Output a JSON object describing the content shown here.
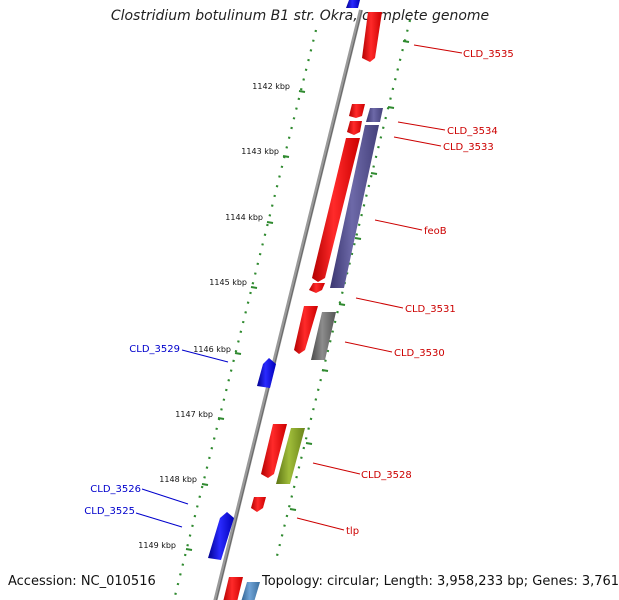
{
  "header": {
    "title": "Clostridium botulinum B1 str. Okra, complete genome"
  },
  "footer": {
    "accession": "Accession: NC_010516",
    "summary": "Topology: circular; Length: 3,958,233 bp; Genes: 3,761"
  },
  "colors": {
    "reverse_gene": "#ff0000",
    "forward_gene": "#0000ee",
    "cds_purple": "#54508e",
    "cds_gray": "#6e6e6e",
    "cds_olive": "#7f9a22",
    "cds_steel": "#4f82b4",
    "scale_tick": "#2f8a2f",
    "label_reverse": "#cc0000",
    "label_forward": "#0000cc"
  },
  "scale_ticks": [
    "1142 kbp",
    "1143 kbp",
    "1144 kbp",
    "1145 kbp",
    "1146 kbp",
    "1147 kbp",
    "1148 kbp",
    "1149 kbp"
  ],
  "gene_labels_right": [
    "CLD_3535",
    "CLD_3534",
    "CLD_3533",
    "feoB",
    "CLD_3531",
    "CLD_3530",
    "CLD_3528",
    "tlp"
  ],
  "gene_labels_left": [
    "CLD_3529",
    "CLD_3526",
    "CLD_3525"
  ]
}
